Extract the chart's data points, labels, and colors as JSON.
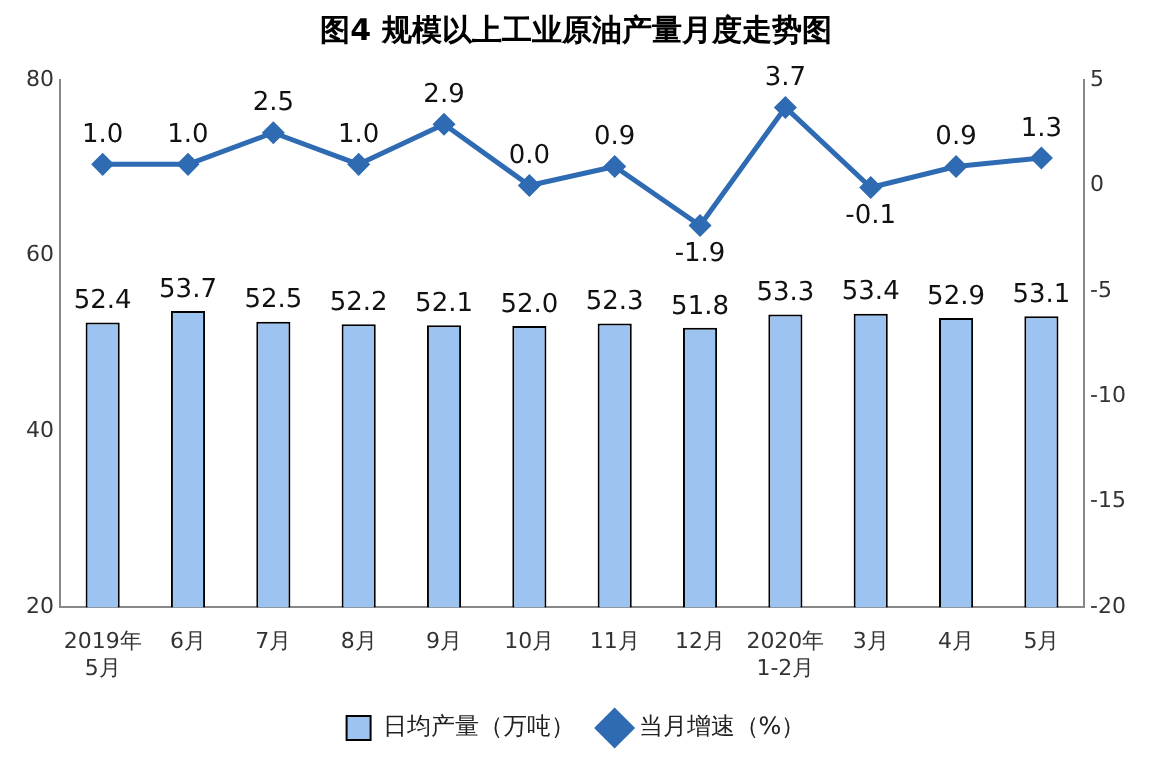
{
  "chart_data": {
    "type": "bar",
    "title": "图4  规模以上工业原油产量月度走势图",
    "categories": [
      "2019年\n5月",
      "6月",
      "7月",
      "8月",
      "9月",
      "10月",
      "11月",
      "12月",
      "2020年\n1-2月",
      "3月",
      "4月",
      "5月"
    ],
    "series": [
      {
        "name": "日均产量（万吨）",
        "color": "#9dc3f0",
        "values": [
          52.4,
          53.7,
          52.5,
          52.2,
          52.1,
          52.0,
          52.3,
          51.8,
          53.3,
          53.4,
          52.9,
          53.1
        ],
        "value_labels": [
          "52.4",
          "53.7",
          "52.5",
          "52.2",
          "52.1",
          "52.0",
          "52.3",
          "51.8",
          "53.3",
          "53.4",
          "52.9",
          "53.1"
        ]
      },
      {
        "name": "当月增速（%）",
        "type": "line",
        "axis": "y2",
        "color": "#2e6bb3",
        "marker": "diamond",
        "values": [
          1.0,
          1.0,
          2.5,
          1.0,
          2.9,
          0.0,
          0.9,
          -1.9,
          3.7,
          -0.1,
          0.9,
          1.3
        ],
        "value_labels": [
          "1.0",
          "1.0",
          "2.5",
          "1.0",
          "2.9",
          "0.0",
          "0.9",
          "-1.9",
          "3.7",
          "-0.1",
          "0.9",
          "1.3"
        ]
      }
    ],
    "ylim": [
      20,
      80
    ],
    "yticks": [
      20,
      40,
      60,
      80
    ],
    "y2lim": [
      -20,
      5
    ],
    "y2ticks": [
      -20,
      -15,
      -10,
      -5,
      0,
      5
    ],
    "grid": false,
    "legend": "bottom"
  }
}
